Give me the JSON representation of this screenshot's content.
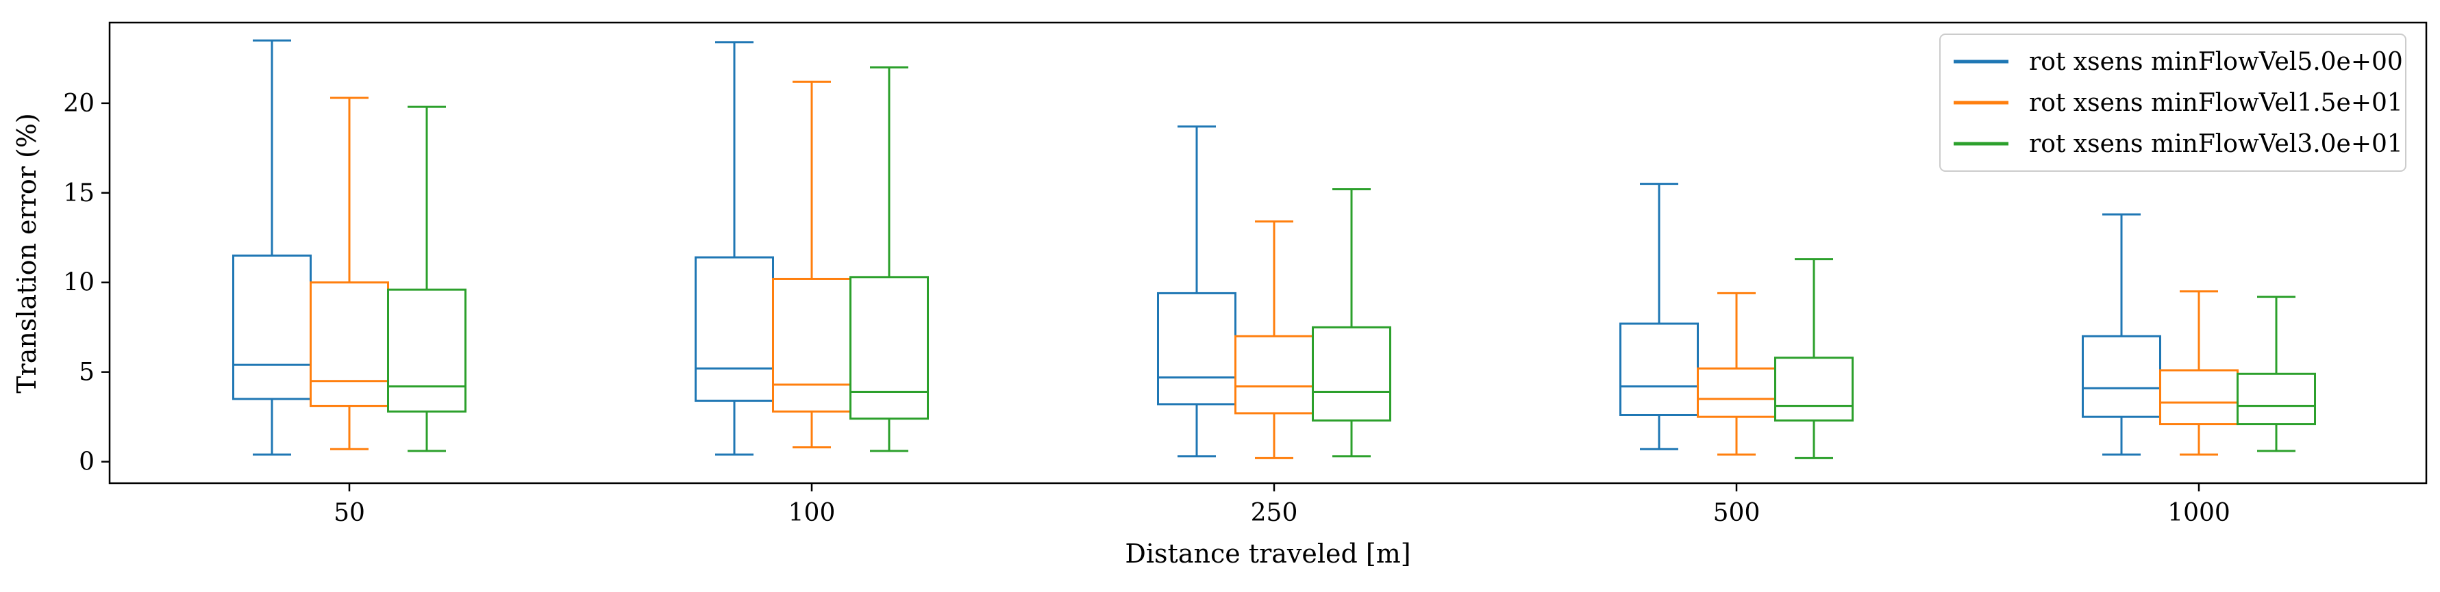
{
  "chart_data": {
    "type": "box",
    "title": "",
    "xlabel": "Distance traveled [m]",
    "ylabel": "Translation error (%)",
    "categories": [
      "50",
      "100",
      "250",
      "500",
      "1000"
    ],
    "ylim": [
      -1.2,
      24.5
    ],
    "yticks": [
      0,
      5,
      10,
      15,
      20
    ],
    "grid": false,
    "legend_position": "top-right",
    "series": [
      {
        "name": "rot xsens minFlowVel5.0e+00",
        "color": "#1f77b4",
        "boxes": [
          {
            "whislo": 0.4,
            "q1": 3.5,
            "med": 5.4,
            "q3": 11.5,
            "whishi": 23.5
          },
          {
            "whislo": 0.4,
            "q1": 3.4,
            "med": 5.2,
            "q3": 11.4,
            "whishi": 23.4
          },
          {
            "whislo": 0.3,
            "q1": 3.2,
            "med": 4.7,
            "q3": 9.4,
            "whishi": 18.7
          },
          {
            "whislo": 0.7,
            "q1": 2.6,
            "med": 4.2,
            "q3": 7.7,
            "whishi": 15.5
          },
          {
            "whislo": 0.4,
            "q1": 2.5,
            "med": 4.1,
            "q3": 7.0,
            "whishi": 13.8
          }
        ]
      },
      {
        "name": "rot xsens minFlowVel1.5e+01",
        "color": "#ff7f0e",
        "boxes": [
          {
            "whislo": 0.7,
            "q1": 3.1,
            "med": 4.5,
            "q3": 10.0,
            "whishi": 20.3
          },
          {
            "whislo": 0.8,
            "q1": 2.8,
            "med": 4.3,
            "q3": 10.2,
            "whishi": 21.2
          },
          {
            "whislo": 0.2,
            "q1": 2.7,
            "med": 4.2,
            "q3": 7.0,
            "whishi": 13.4
          },
          {
            "whislo": 0.4,
            "q1": 2.5,
            "med": 3.5,
            "q3": 5.2,
            "whishi": 9.4
          },
          {
            "whislo": 0.4,
            "q1": 2.1,
            "med": 3.3,
            "q3": 5.1,
            "whishi": 9.5
          }
        ]
      },
      {
        "name": "rot xsens minFlowVel3.0e+01",
        "color": "#2ca02c",
        "boxes": [
          {
            "whislo": 0.6,
            "q1": 2.8,
            "med": 4.2,
            "q3": 9.6,
            "whishi": 19.8
          },
          {
            "whislo": 0.6,
            "q1": 2.4,
            "med": 3.9,
            "q3": 10.3,
            "whishi": 22.0
          },
          {
            "whislo": 0.3,
            "q1": 2.3,
            "med": 3.9,
            "q3": 7.5,
            "whishi": 15.2
          },
          {
            "whislo": 0.2,
            "q1": 2.3,
            "med": 3.1,
            "q3": 5.8,
            "whishi": 11.3
          },
          {
            "whislo": 0.6,
            "q1": 2.1,
            "med": 3.1,
            "q3": 4.9,
            "whishi": 9.2
          }
        ]
      }
    ]
  }
}
